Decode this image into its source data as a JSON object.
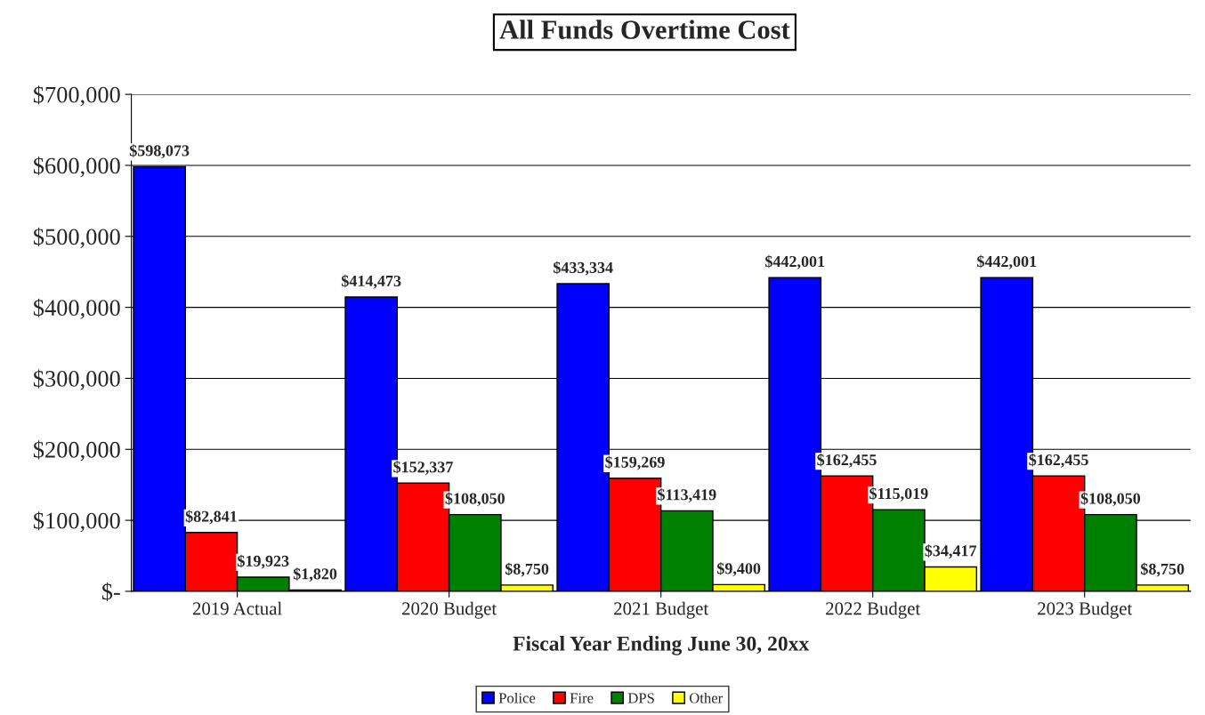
{
  "chart_data": {
    "type": "bar",
    "title": "All Funds Overtime Cost",
    "xlabel": "Fiscal Year Ending June 30, 20xx",
    "categories": [
      "2019 Actual",
      "2020 Budget",
      "2021 Budget",
      "2022 Budget",
      "2023 Budget"
    ],
    "series": [
      {
        "name": "Police",
        "color": "#0000ff",
        "values": [
          598073,
          414473,
          433334,
          442001,
          442001
        ],
        "value_labels": [
          "$598,073",
          "$414,473",
          "$433,334",
          "$442,001",
          "$442,001"
        ]
      },
      {
        "name": "Fire",
        "color": "#ff0000",
        "values": [
          82841,
          152337,
          159269,
          162455,
          162455
        ],
        "value_labels": [
          "$82,841",
          "$152,337",
          "$159,269",
          "$162,455",
          "$162,455"
        ]
      },
      {
        "name": "DPS",
        "color": "#008000",
        "values": [
          19923,
          108050,
          113419,
          115019,
          108050
        ],
        "value_labels": [
          "$19,923",
          "$108,050",
          "$113,419",
          "$115,019",
          "$108,050"
        ]
      },
      {
        "name": "Other",
        "color": "#ffff00",
        "values": [
          1820,
          8750,
          9400,
          34417,
          8750
        ],
        "value_labels": [
          "$1,820",
          "$8,750",
          "$9,400",
          "$34,417",
          "$8,750"
        ]
      }
    ],
    "ylim": [
      0,
      700000
    ],
    "yticks": [
      {
        "value": 0,
        "label": "$-"
      },
      {
        "value": 100000,
        "label": "$100,000"
      },
      {
        "value": 200000,
        "label": "$200,000"
      },
      {
        "value": 300000,
        "label": "$300,000"
      },
      {
        "value": 400000,
        "label": "$400,000"
      },
      {
        "value": 500000,
        "label": "$500,000"
      },
      {
        "value": 600000,
        "label": "$600,000"
      },
      {
        "value": 700000,
        "label": "$700,000"
      }
    ],
    "grid": "y",
    "legend": "bottom"
  }
}
